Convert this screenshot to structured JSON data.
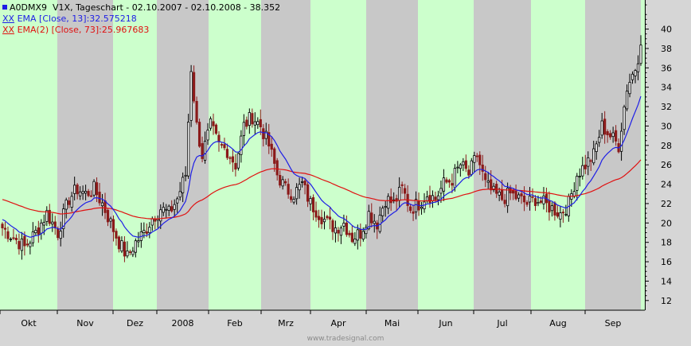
{
  "header": {
    "symbol": "A0DMX9",
    "title_rest": "V1X, Tageschart - 02.10.2007 - 02.10.2008 - 38.352",
    "ema13_prefix": "XX",
    "ema13": "EMA [Close, 13]:32.575218",
    "ema73_prefix": "XX",
    "ema73": "EMA(2) [Close, 73]:25.967683"
  },
  "footer": {
    "watermark": "www.tradesignal.com"
  },
  "colors": {
    "band_green": "#ccffcc",
    "band_gray": "#c8c8c8",
    "ema13": "#1e1ee6",
    "ema73": "#e01010",
    "candle_up": "#000000",
    "candle_down": "#8b1a1a"
  },
  "chart_data": {
    "type": "candlestick",
    "title": "A0DMX9 V1X, Tageschart - 02.10.2007 - 02.10.2008 - 38.352",
    "x_labels": [
      "Okt",
      "Nov",
      "Dez",
      "2008",
      "Feb",
      "Mrz",
      "Apr",
      "Mai",
      "Jun",
      "Jul",
      "Aug",
      "Sep"
    ],
    "y_ticks": [
      12,
      14,
      16,
      18,
      20,
      22,
      24,
      26,
      28,
      30,
      32,
      34,
      36,
      38,
      40
    ],
    "ylim": [
      11,
      43
    ],
    "y_axis_side": "right",
    "grid": false,
    "last_close": 38.352,
    "series": [
      {
        "name": "EMA [Close, 13]",
        "last": 32.575218
      },
      {
        "name": "EMA(2) [Close, 73]",
        "last": 25.967683
      }
    ],
    "close_path": [
      [
        0,
        19.5
      ],
      [
        4,
        18.5
      ],
      [
        8,
        17.5
      ],
      [
        12,
        19
      ],
      [
        16,
        21
      ],
      [
        20,
        19
      ],
      [
        24,
        22.5
      ],
      [
        27,
        23.5
      ],
      [
        30,
        23
      ],
      [
        33,
        23.5
      ],
      [
        36,
        22
      ],
      [
        39,
        20
      ],
      [
        42,
        18
      ],
      [
        45,
        16.5
      ],
      [
        48,
        18
      ],
      [
        51,
        19
      ],
      [
        54,
        20.5
      ],
      [
        57,
        21.5
      ],
      [
        60,
        21
      ],
      [
        63,
        22.5
      ],
      [
        66,
        25
      ],
      [
        68,
        36
      ],
      [
        70,
        30
      ],
      [
        72,
        27
      ],
      [
        75,
        30
      ],
      [
        78,
        28
      ],
      [
        81,
        27.5
      ],
      [
        84,
        26
      ],
      [
        87,
        30
      ],
      [
        90,
        31
      ],
      [
        93,
        30
      ],
      [
        96,
        28
      ],
      [
        99,
        25
      ],
      [
        102,
        23.5
      ],
      [
        105,
        23
      ],
      [
        108,
        24
      ],
      [
        111,
        22
      ],
      [
        114,
        21
      ],
      [
        117,
        20
      ],
      [
        120,
        19.5
      ],
      [
        123,
        20
      ],
      [
        126,
        18.5
      ],
      [
        129,
        19
      ],
      [
        132,
        21
      ],
      [
        135,
        20
      ],
      [
        138,
        22.5
      ],
      [
        141,
        22
      ],
      [
        144,
        23.5
      ],
      [
        147,
        21.5
      ],
      [
        150,
        22
      ],
      [
        153,
        23
      ],
      [
        156,
        22.5
      ],
      [
        159,
        24
      ],
      [
        162,
        24.5
      ],
      [
        165,
        26
      ],
      [
        168,
        25
      ],
      [
        171,
        27
      ],
      [
        174,
        24
      ],
      [
        177,
        23
      ],
      [
        180,
        22.5
      ],
      [
        183,
        23
      ],
      [
        186,
        22.5
      ],
      [
        189,
        22
      ],
      [
        192,
        22.5
      ],
      [
        195,
        22
      ],
      [
        198,
        21.5
      ],
      [
        201,
        21
      ],
      [
        204,
        22
      ],
      [
        207,
        25
      ],
      [
        210,
        26
      ],
      [
        213,
        27
      ],
      [
        216,
        30
      ],
      [
        219,
        29
      ],
      [
        222,
        28
      ],
      [
        225,
        34
      ],
      [
        228,
        36
      ],
      [
        230,
        38.352
      ]
    ]
  }
}
